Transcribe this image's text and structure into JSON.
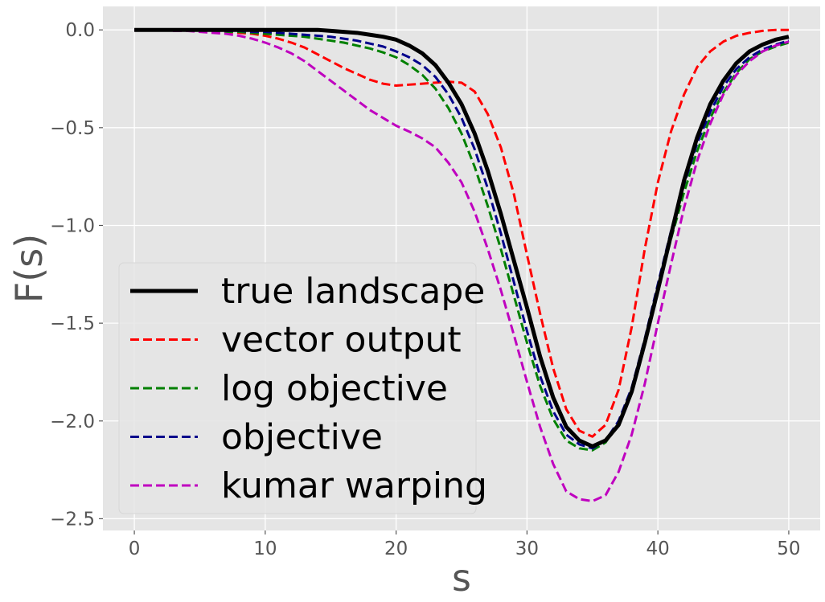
{
  "chart_data": {
    "type": "line",
    "title": "",
    "xlabel": "s",
    "ylabel": "F(s)",
    "xlim": [
      -2.4,
      52.4
    ],
    "ylim": [
      -2.56,
      0.12
    ],
    "xticks": [
      0,
      10,
      20,
      30,
      40,
      50
    ],
    "yticks": [
      0.0,
      -0.5,
      -1.0,
      -1.5,
      -2.0,
      -2.5
    ],
    "xtick_labels": [
      "0",
      "10",
      "20",
      "30",
      "40",
      "50"
    ],
    "ytick_labels": [
      "0.0",
      "−0.5",
      "−1.0",
      "−1.5",
      "−2.0",
      "−2.5"
    ],
    "grid": true,
    "legend_position": "lower-left",
    "background_color": "#e5e5e5",
    "x": [
      0,
      1,
      2,
      3,
      4,
      5,
      6,
      7,
      8,
      9,
      10,
      11,
      12,
      13,
      14,
      15,
      16,
      17,
      18,
      19,
      20,
      21,
      22,
      23,
      24,
      25,
      26,
      27,
      28,
      29,
      30,
      31,
      32,
      33,
      34,
      35,
      36,
      37,
      38,
      39,
      40,
      41,
      42,
      43,
      44,
      45,
      46,
      47,
      48,
      49,
      50
    ],
    "series": [
      {
        "name": "true landscape",
        "color": "#000000",
        "style": "solid",
        "values": [
          0,
          0,
          0,
          0,
          0,
          0,
          0,
          0,
          0,
          0,
          0,
          0,
          0,
          0,
          0,
          -0.005,
          -0.01,
          -0.015,
          -0.025,
          -0.035,
          -0.05,
          -0.08,
          -0.12,
          -0.18,
          -0.27,
          -0.38,
          -0.53,
          -0.72,
          -0.94,
          -1.18,
          -1.42,
          -1.67,
          -1.88,
          -2.03,
          -2.1,
          -2.13,
          -2.1,
          -2.02,
          -1.85,
          -1.6,
          -1.33,
          -1.05,
          -0.77,
          -0.55,
          -0.38,
          -0.26,
          -0.17,
          -0.11,
          -0.075,
          -0.05,
          -0.035
        ]
      },
      {
        "name": "vector output",
        "color": "#ff0000",
        "style": "dashed",
        "values": [
          0,
          0,
          0,
          0,
          0,
          0,
          -0.005,
          -0.01,
          -0.015,
          -0.02,
          -0.03,
          -0.045,
          -0.065,
          -0.09,
          -0.125,
          -0.16,
          -0.195,
          -0.225,
          -0.255,
          -0.275,
          -0.285,
          -0.28,
          -0.275,
          -0.27,
          -0.265,
          -0.27,
          -0.315,
          -0.43,
          -0.6,
          -0.84,
          -1.15,
          -1.45,
          -1.73,
          -1.94,
          -2.05,
          -2.08,
          -2.02,
          -1.84,
          -1.52,
          -1.12,
          -0.78,
          -0.52,
          -0.33,
          -0.19,
          -0.11,
          -0.06,
          -0.03,
          -0.015,
          -0.005,
          0,
          0
        ]
      },
      {
        "name": "log objective",
        "color": "#008000",
        "style": "dashed",
        "values": [
          0,
          0,
          0,
          0,
          0,
          -0.005,
          -0.005,
          -0.01,
          -0.01,
          -0.015,
          -0.02,
          -0.025,
          -0.03,
          -0.035,
          -0.045,
          -0.055,
          -0.065,
          -0.08,
          -0.095,
          -0.115,
          -0.14,
          -0.18,
          -0.23,
          -0.3,
          -0.4,
          -0.53,
          -0.7,
          -0.9,
          -1.12,
          -1.36,
          -1.6,
          -1.82,
          -1.99,
          -2.1,
          -2.14,
          -2.15,
          -2.11,
          -2.01,
          -1.84,
          -1.6,
          -1.33,
          -1.07,
          -0.83,
          -0.62,
          -0.45,
          -0.32,
          -0.22,
          -0.15,
          -0.11,
          -0.085,
          -0.065
        ]
      },
      {
        "name": "objective",
        "color": "#00008b",
        "style": "dashed",
        "values": [
          0,
          0,
          0,
          0,
          0,
          0,
          0,
          -0.005,
          -0.005,
          -0.01,
          -0.01,
          -0.015,
          -0.02,
          -0.025,
          -0.03,
          -0.035,
          -0.045,
          -0.055,
          -0.07,
          -0.085,
          -0.11,
          -0.14,
          -0.18,
          -0.24,
          -0.33,
          -0.45,
          -0.61,
          -0.81,
          -1.04,
          -1.29,
          -1.54,
          -1.77,
          -1.95,
          -2.07,
          -2.12,
          -2.14,
          -2.1,
          -2.0,
          -1.83,
          -1.58,
          -1.3,
          -1.03,
          -0.79,
          -0.58,
          -0.42,
          -0.29,
          -0.2,
          -0.14,
          -0.1,
          -0.075,
          -0.055
        ]
      },
      {
        "name": "kumar warping",
        "color": "#bf00bf",
        "style": "dashed",
        "values": [
          0,
          0,
          0,
          -0.005,
          -0.005,
          -0.01,
          -0.015,
          -0.02,
          -0.03,
          -0.045,
          -0.065,
          -0.09,
          -0.12,
          -0.16,
          -0.21,
          -0.26,
          -0.31,
          -0.36,
          -0.41,
          -0.45,
          -0.49,
          -0.52,
          -0.555,
          -0.6,
          -0.68,
          -0.78,
          -0.93,
          -1.12,
          -1.33,
          -1.56,
          -1.8,
          -2.03,
          -2.22,
          -2.36,
          -2.4,
          -2.41,
          -2.38,
          -2.26,
          -2.07,
          -1.81,
          -1.5,
          -1.2,
          -0.91,
          -0.67,
          -0.48,
          -0.33,
          -0.23,
          -0.16,
          -0.11,
          -0.08,
          -0.06
        ]
      }
    ]
  }
}
